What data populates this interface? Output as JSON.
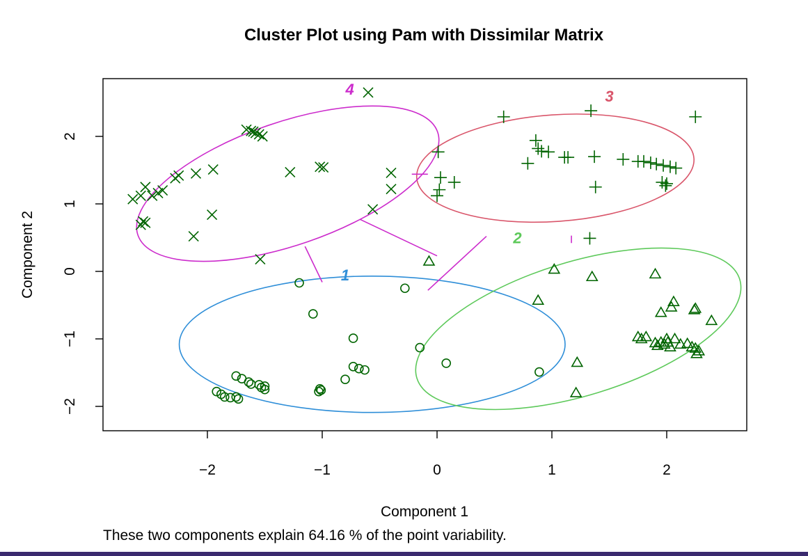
{
  "chart_data": {
    "type": "scatter",
    "title": "Cluster Plot using Pam with Dissimilar Matrix",
    "xlabel": "Component 1",
    "ylabel": "Component 2",
    "subtitle": "These two components explain 64.16 % of the point variability.",
    "xlim": [
      -2.9,
      2.7
    ],
    "ylim": [
      -2.4,
      2.85
    ],
    "x_ticks": [
      -2,
      -1,
      0,
      1,
      2
    ],
    "y_ticks": [
      -2,
      -1,
      0,
      1,
      2
    ],
    "x_tick_labels": [
      "−2",
      "−1",
      "0",
      "1",
      "2"
    ],
    "y_tick_labels": [
      "−2",
      "−1",
      "0",
      "1",
      "2"
    ],
    "point_color": "#006400",
    "clusters": [
      {
        "id": "1",
        "label": "1",
        "color": "#2e8ed8",
        "marker": "circle",
        "ellipse": {
          "cx": -0.565,
          "cy": -1.08,
          "rx": 1.68,
          "ry": 1.01,
          "angle_deg": 0
        },
        "label_pos": [
          -0.8,
          -0.05
        ],
        "points": [
          [
            -1.2,
            -0.17
          ],
          [
            -1.08,
            -0.63
          ],
          [
            -0.28,
            -0.25
          ],
          [
            -0.73,
            -0.99
          ],
          [
            -0.15,
            -1.13
          ],
          [
            0.08,
            -1.36
          ],
          [
            -0.73,
            -1.41
          ],
          [
            -0.68,
            -1.44
          ],
          [
            -0.63,
            -1.46
          ],
          [
            -0.8,
            -1.6
          ],
          [
            0.89,
            -1.49
          ],
          [
            -1.92,
            -1.78
          ],
          [
            -1.88,
            -1.82
          ],
          [
            -1.85,
            -1.86
          ],
          [
            -1.8,
            -1.87
          ],
          [
            -1.75,
            -1.86
          ],
          [
            -1.73,
            -1.89
          ],
          [
            -1.75,
            -1.55
          ],
          [
            -1.7,
            -1.59
          ],
          [
            -1.64,
            -1.64
          ],
          [
            -1.62,
            -1.67
          ],
          [
            -1.55,
            -1.68
          ],
          [
            -1.5,
            -1.7
          ],
          [
            -1.53,
            -1.72
          ],
          [
            -1.5,
            -1.75
          ],
          [
            -1.02,
            -1.74
          ],
          [
            -1.01,
            -1.76
          ],
          [
            -1.03,
            -1.78
          ]
        ]
      },
      {
        "id": "2",
        "label": "2",
        "color": "#5dc95a",
        "marker": "triangle",
        "ellipse": {
          "cx": 1.23,
          "cy": -0.85,
          "rx": 1.47,
          "ry": 0.99,
          "angle_deg": 17
        },
        "label_pos": [
          0.7,
          0.5
        ],
        "points": [
          [
            -0.07,
            0.15
          ],
          [
            1.02,
            0.03
          ],
          [
            1.35,
            -0.08
          ],
          [
            0.88,
            -0.43
          ],
          [
            1.9,
            -0.04
          ],
          [
            2.06,
            -0.45
          ],
          [
            2.04,
            -0.53
          ],
          [
            1.95,
            -0.61
          ],
          [
            2.25,
            -0.55
          ],
          [
            2.24,
            -0.57
          ],
          [
            2.39,
            -0.73
          ],
          [
            1.22,
            -1.35
          ],
          [
            1.21,
            -1.8
          ],
          [
            1.75,
            -0.97
          ],
          [
            1.78,
            -1.0
          ],
          [
            1.82,
            -0.97
          ],
          [
            1.9,
            -1.06
          ],
          [
            1.92,
            -1.1
          ],
          [
            1.95,
            -1.05
          ],
          [
            1.98,
            -1.08
          ],
          [
            2.0,
            -1.0
          ],
          [
            2.01,
            -1.05
          ],
          [
            2.03,
            -1.12
          ],
          [
            2.07,
            -1.0
          ],
          [
            2.12,
            -1.08
          ],
          [
            2.18,
            -1.07
          ],
          [
            2.22,
            -1.12
          ],
          [
            2.25,
            -1.14
          ],
          [
            2.28,
            -1.18
          ],
          [
            2.26,
            -1.22
          ]
        ]
      },
      {
        "id": "3",
        "label": "3",
        "color": "#d9556a",
        "marker": "plus",
        "ellipse": {
          "cx": 1.03,
          "cy": 1.53,
          "rx": 1.21,
          "ry": 0.79,
          "angle_deg": 4
        },
        "label_pos": [
          1.5,
          2.6
        ],
        "points": [
          [
            0.58,
            2.29
          ],
          [
            1.34,
            2.38
          ],
          [
            2.25,
            2.29
          ],
          [
            0.86,
            1.94
          ],
          [
            0.88,
            1.82
          ],
          [
            0.91,
            1.78
          ],
          [
            0.97,
            1.77
          ],
          [
            1.11,
            1.69
          ],
          [
            1.14,
            1.69
          ],
          [
            1.37,
            1.7
          ],
          [
            1.62,
            1.66
          ],
          [
            1.75,
            1.63
          ],
          [
            1.8,
            1.63
          ],
          [
            1.86,
            1.61
          ],
          [
            1.91,
            1.59
          ],
          [
            1.97,
            1.57
          ],
          [
            2.03,
            1.55
          ],
          [
            2.08,
            1.53
          ],
          [
            1.96,
            1.32
          ],
          [
            2.0,
            1.3
          ],
          [
            1.99,
            1.27
          ],
          [
            0.79,
            1.6
          ],
          [
            1.38,
            1.25
          ],
          [
            1.33,
            0.49
          ],
          [
            0.01,
            1.77
          ],
          [
            0.03,
            1.39
          ],
          [
            0.15,
            1.32
          ],
          [
            0.02,
            1.21
          ],
          [
            0.0,
            1.12
          ]
        ]
      },
      {
        "id": "4",
        "label": "4",
        "color": "#cc2bcc",
        "marker": "x",
        "ellipse": {
          "cx": -1.3,
          "cy": 1.3,
          "rx": 1.38,
          "ry": 0.91,
          "angle_deg": 19
        },
        "label_pos": [
          -0.76,
          2.7
        ],
        "points": [
          [
            -0.6,
            2.65
          ],
          [
            -1.66,
            2.1
          ],
          [
            -1.62,
            2.08
          ],
          [
            -1.58,
            2.05
          ],
          [
            -1.55,
            2.03
          ],
          [
            -1.52,
            2.0
          ],
          [
            -1.6,
            2.07
          ],
          [
            -2.65,
            1.07
          ],
          [
            -2.58,
            1.12
          ],
          [
            -2.54,
            1.25
          ],
          [
            -2.48,
            1.12
          ],
          [
            -2.43,
            1.16
          ],
          [
            -2.39,
            1.2
          ],
          [
            -2.28,
            1.38
          ],
          [
            -2.25,
            1.42
          ],
          [
            -2.1,
            1.45
          ],
          [
            -1.95,
            1.51
          ],
          [
            -1.96,
            0.84
          ],
          [
            -2.12,
            0.52
          ],
          [
            -2.56,
            0.74
          ],
          [
            -2.58,
            0.69
          ],
          [
            -2.54,
            0.72
          ],
          [
            -1.28,
            1.47
          ],
          [
            -1.02,
            1.55
          ],
          [
            -0.99,
            1.54
          ],
          [
            -0.4,
            1.46
          ],
          [
            -0.4,
            1.22
          ],
          [
            -0.56,
            0.92
          ],
          [
            -1.54,
            0.18
          ]
        ]
      }
    ],
    "connectors": [
      {
        "color": "#cc2bcc",
        "from": [
          -1.15,
          0.37
        ],
        "to": [
          -1.0,
          -0.16
        ]
      },
      {
        "color": "#cc2bcc",
        "from": [
          -0.67,
          0.77
        ],
        "to": [
          0.0,
          0.23
        ]
      },
      {
        "color": "#cc2bcc",
        "from": [
          -0.22,
          1.44
        ],
        "to": [
          -0.08,
          1.44
        ]
      },
      {
        "color": "#cc2bcc",
        "from": [
          -0.08,
          -0.28
        ],
        "to": [
          0.43,
          0.52
        ]
      },
      {
        "color": "#cc2bcc",
        "from": [
          1.17,
          0.42
        ],
        "to": [
          1.17,
          0.53
        ]
      }
    ]
  }
}
